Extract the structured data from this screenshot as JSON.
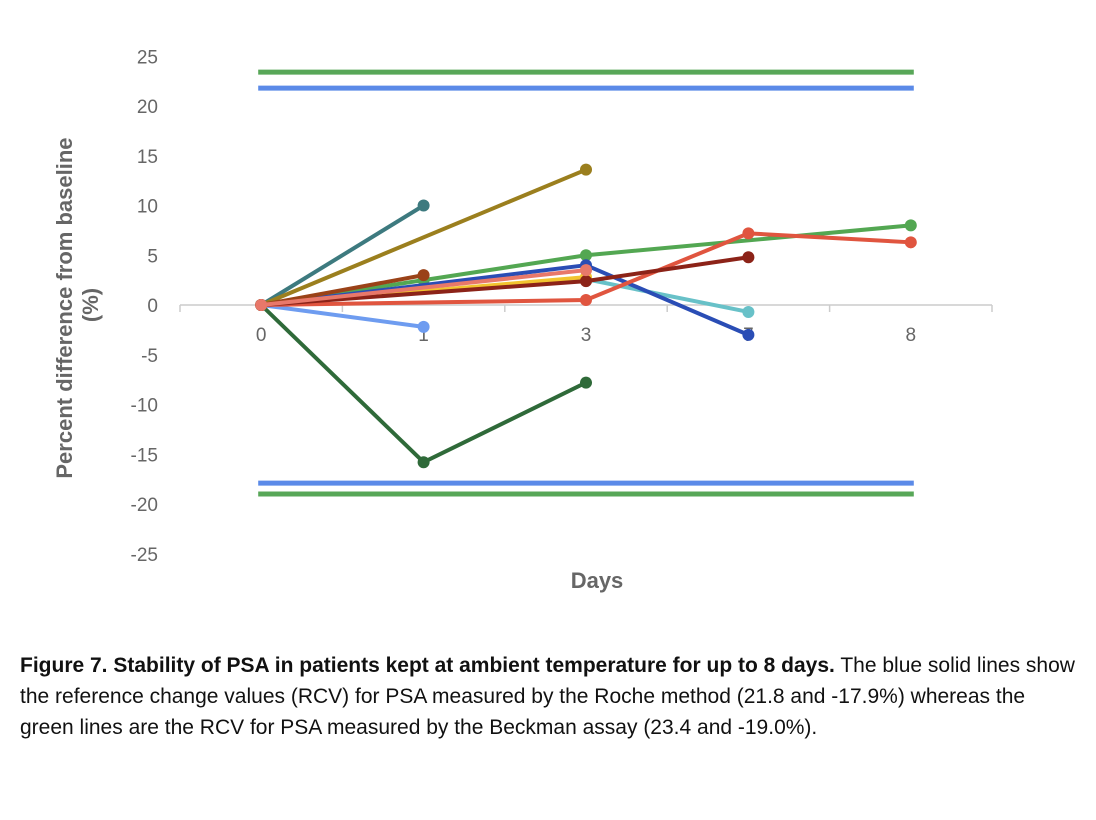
{
  "chart_data": {
    "type": "line",
    "xlabel": "Days",
    "ylabel": "Percent difference from baseline (%)",
    "ylabel_lines": [
      "Percent difference from baseline",
      "(%)"
    ],
    "categories": [
      "0",
      "1",
      "3",
      "7",
      "8"
    ],
    "ylim": [
      -25,
      25
    ],
    "yticks": [
      25,
      20,
      15,
      10,
      5,
      0,
      -5,
      -10,
      -15,
      -20,
      -25
    ],
    "grid": false,
    "legend": "none",
    "reference_lines": [
      {
        "value": 23.4,
        "color": "#58a758"
      },
      {
        "value": 21.8,
        "color": "#5b8ae8"
      },
      {
        "value": -17.9,
        "color": "#5b8ae8"
      },
      {
        "value": -19.0,
        "color": "#58a758"
      }
    ],
    "series": [
      {
        "color": "#2f6a39",
        "values": [
          0,
          -15.8,
          -7.8,
          null,
          null
        ]
      },
      {
        "color": "#3d7a7f",
        "values": [
          0,
          10.0,
          null,
          null,
          null
        ]
      },
      {
        "color": "#9b7f1e",
        "values": [
          0,
          null,
          13.6,
          null,
          null
        ]
      },
      {
        "color": "#6e9cf0",
        "values": [
          0,
          -2.2,
          null,
          null,
          null
        ]
      },
      {
        "color": "#53a752",
        "values": [
          0,
          2.5,
          5.0,
          null,
          8.0
        ]
      },
      {
        "color": "#68c1c8",
        "values": [
          0,
          null,
          2.6,
          -0.7,
          null
        ]
      },
      {
        "color": "#2a4db5",
        "values": [
          0,
          null,
          4.0,
          -3.0,
          null
        ]
      },
      {
        "color": "#f2c42f",
        "values": [
          0,
          null,
          2.8,
          null,
          null
        ]
      },
      {
        "color": "#e0553f",
        "values": [
          0,
          null,
          0.5,
          7.2,
          6.3
        ]
      },
      {
        "color": "#8c2318",
        "values": [
          0,
          null,
          2.4,
          4.8,
          null
        ]
      },
      {
        "color": "#9a4218",
        "values": [
          0,
          3.0,
          null,
          null,
          null
        ]
      },
      {
        "color": "#e8786a",
        "values": [
          0,
          null,
          3.5,
          null,
          null
        ]
      }
    ]
  },
  "caption": {
    "bold": "Figure 7. Stability of PSA in patients kept at ambient temperature for up to 8 days.",
    "text": " The blue solid lines show the reference change values (RCV) for PSA measured by the Roche method (21.8 and -17.9%) whereas the green lines are the RCV for PSA measured by the Beckman assay (23.4 and -19.0%)."
  }
}
